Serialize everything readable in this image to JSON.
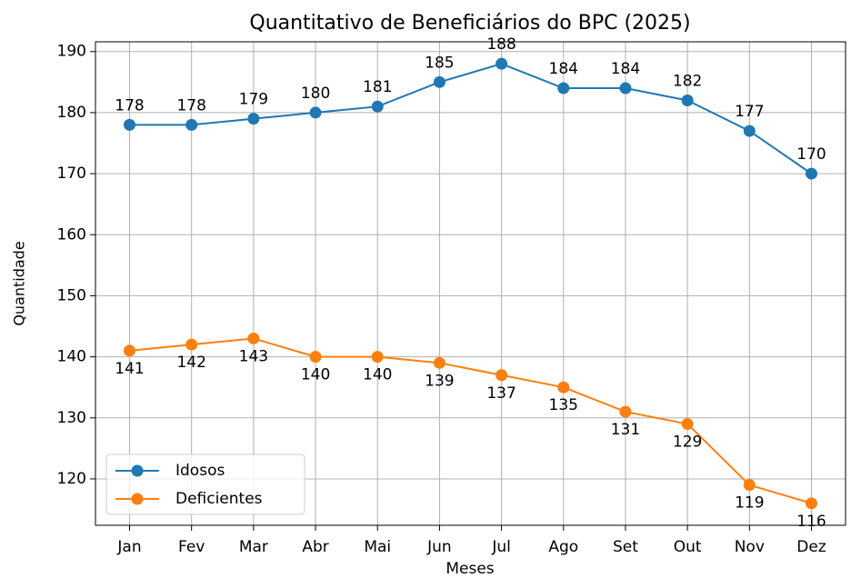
{
  "chart_data": {
    "type": "line",
    "title": "Quantitativo de Beneficiários do BPC (2025)",
    "x_label": "Meses",
    "y_label": "Quantidade",
    "categories": [
      "Jan",
      "Fev",
      "Mar",
      "Abr",
      "Mai",
      "Jun",
      "Jul",
      "Ago",
      "Set",
      "Out",
      "Nov",
      "Dez"
    ],
    "series": [
      {
        "name": "Idosos",
        "color": "#1f77b4",
        "values": [
          178,
          178,
          179,
          180,
          181,
          185,
          188,
          184,
          184,
          182,
          177,
          170
        ]
      },
      {
        "name": "Deficientes",
        "color": "#ff7f0e",
        "values": [
          141,
          142,
          143,
          140,
          140,
          139,
          137,
          135,
          131,
          129,
          119,
          116
        ]
      }
    ],
    "ylim": [
      112.4,
      191.6
    ],
    "yticks": [
      120,
      130,
      140,
      150,
      160,
      170,
      180,
      190
    ],
    "grid": true,
    "legend": "lower left"
  }
}
